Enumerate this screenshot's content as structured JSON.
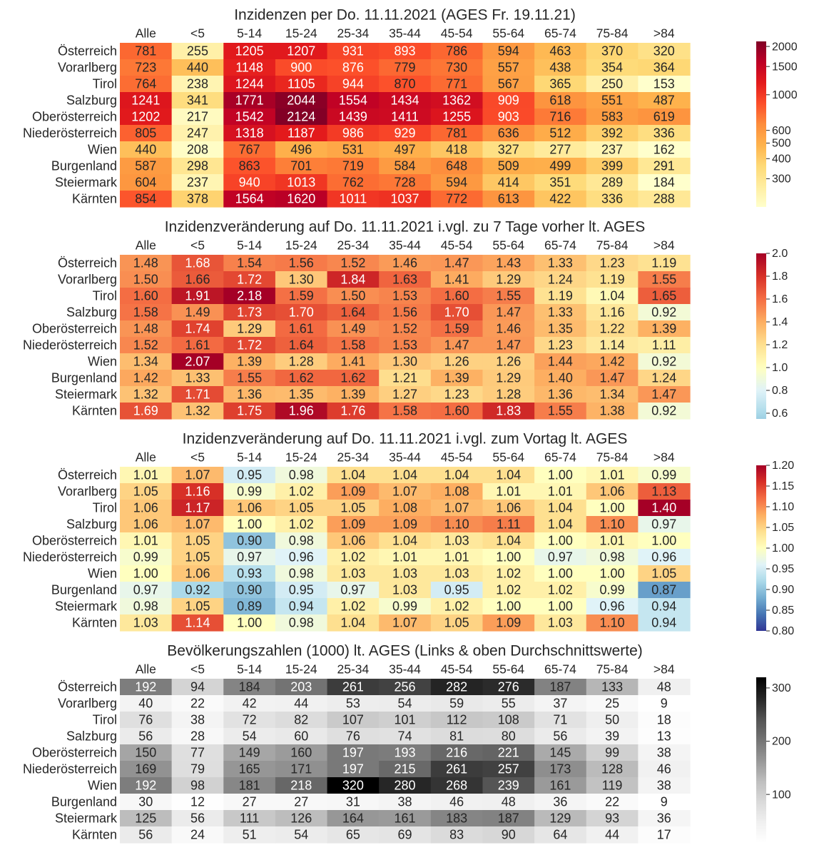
{
  "chart_data": [
    {
      "type": "heatmap",
      "title": "Inzidenzen per Do. 11.11.2021 (AGES Fr. 19.11.21)",
      "columns": [
        "Alle",
        "<5",
        "5-14",
        "15-24",
        "25-34",
        "35-44",
        "45-54",
        "55-64",
        "65-74",
        "75-84",
        ">84"
      ],
      "rows": [
        "Österreich",
        "Vorarlberg",
        "Tirol",
        "Salzburg",
        "Oberösterreich",
        "Niederösterreich",
        "Wien",
        "Burgenland",
        "Steiermark",
        "Kärnten"
      ],
      "values": [
        [
          "781",
          "255",
          "1205",
          "1207",
          "931",
          "893",
          "786",
          "594",
          "463",
          "370",
          "320"
        ],
        [
          "723",
          "440",
          "1148",
          "900",
          "876",
          "779",
          "730",
          "557",
          "438",
          "354",
          "364"
        ],
        [
          "764",
          "238",
          "1244",
          "1105",
          "944",
          "870",
          "771",
          "567",
          "365",
          "250",
          "153"
        ],
        [
          "1241",
          "341",
          "1771",
          "2044",
          "1554",
          "1434",
          "1362",
          "909",
          "618",
          "551",
          "487"
        ],
        [
          "1202",
          "217",
          "1542",
          "2124",
          "1439",
          "1411",
          "1255",
          "903",
          "716",
          "583",
          "619"
        ],
        [
          "805",
          "247",
          "1318",
          "1187",
          "986",
          "929",
          "781",
          "636",
          "512",
          "392",
          "336"
        ],
        [
          "440",
          "208",
          "767",
          "496",
          "531",
          "497",
          "418",
          "327",
          "277",
          "237",
          "162"
        ],
        [
          "587",
          "298",
          "863",
          "701",
          "719",
          "584",
          "648",
          "509",
          "499",
          "399",
          "291"
        ],
        [
          "604",
          "237",
          "940",
          "1013",
          "762",
          "728",
          "594",
          "414",
          "351",
          "289",
          "184"
        ],
        [
          "854",
          "378",
          "1564",
          "1620",
          "1011",
          "1037",
          "772",
          "613",
          "422",
          "336",
          "288"
        ]
      ],
      "colormap": "YlOrRd",
      "scale": "log",
      "vmin": 200,
      "vmax": 2150,
      "colorbar_ticks": [
        "300",
        "400",
        "500",
        "600",
        "1000",
        "1500",
        "2000"
      ]
    },
    {
      "type": "heatmap",
      "title": "Inzidenzveränderung auf Do. 11.11.2021 i.vgl. zu 7 Tage vorher lt. AGES",
      "columns": [
        "Alle",
        "<5",
        "5-14",
        "15-24",
        "25-34",
        "35-44",
        "45-54",
        "55-64",
        "65-74",
        "75-84",
        ">84"
      ],
      "rows": [
        "Österreich",
        "Vorarlberg",
        "Tirol",
        "Salzburg",
        "Oberösterreich",
        "Niederösterreich",
        "Wien",
        "Burgenland",
        "Steiermark",
        "Kärnten"
      ],
      "values": [
        [
          "1.48",
          "1.68",
          "1.54",
          "1.56",
          "1.52",
          "1.46",
          "1.47",
          "1.43",
          "1.33",
          "1.23",
          "1.19"
        ],
        [
          "1.50",
          "1.66",
          "1.72",
          "1.30",
          "1.84",
          "1.63",
          "1.41",
          "1.29",
          "1.24",
          "1.19",
          "1.55"
        ],
        [
          "1.60",
          "1.91",
          "2.18",
          "1.59",
          "1.50",
          "1.53",
          "1.60",
          "1.55",
          "1.19",
          "1.04",
          "1.65"
        ],
        [
          "1.58",
          "1.49",
          "1.73",
          "1.70",
          "1.64",
          "1.56",
          "1.70",
          "1.47",
          "1.33",
          "1.16",
          "0.92"
        ],
        [
          "1.48",
          "1.74",
          "1.29",
          "1.61",
          "1.49",
          "1.52",
          "1.59",
          "1.46",
          "1.35",
          "1.22",
          "1.39"
        ],
        [
          "1.52",
          "1.61",
          "1.72",
          "1.64",
          "1.58",
          "1.53",
          "1.47",
          "1.47",
          "1.23",
          "1.14",
          "1.11"
        ],
        [
          "1.34",
          "2.07",
          "1.39",
          "1.28",
          "1.41",
          "1.30",
          "1.26",
          "1.26",
          "1.44",
          "1.42",
          "0.92"
        ],
        [
          "1.42",
          "1.33",
          "1.55",
          "1.62",
          "1.62",
          "1.21",
          "1.39",
          "1.29",
          "1.40",
          "1.47",
          "1.24"
        ],
        [
          "1.32",
          "1.71",
          "1.36",
          "1.35",
          "1.39",
          "1.27",
          "1.23",
          "1.28",
          "1.36",
          "1.34",
          "1.47"
        ],
        [
          "1.69",
          "1.32",
          "1.75",
          "1.96",
          "1.76",
          "1.58",
          "1.60",
          "1.83",
          "1.55",
          "1.38",
          "0.92"
        ]
      ],
      "colormap": "RdYlBu_r",
      "scale": "linear",
      "vmin": 0.55,
      "vmax": 2.0,
      "center": 1.0,
      "colorbar_ticks": [
        "0.6",
        "0.8",
        "1.0",
        "1.2",
        "1.4",
        "1.6",
        "1.8",
        "2.0"
      ]
    },
    {
      "type": "heatmap",
      "title": "Inzidenzveränderung auf Do. 11.11.2021 i.vgl. zum Vortag lt. AGES",
      "columns": [
        "Alle",
        "<5",
        "5-14",
        "15-24",
        "25-34",
        "35-44",
        "45-54",
        "55-64",
        "65-74",
        "75-84",
        ">84"
      ],
      "rows": [
        "Österreich",
        "Vorarlberg",
        "Tirol",
        "Salzburg",
        "Oberösterreich",
        "Niederösterreich",
        "Wien",
        "Burgenland",
        "Steiermark",
        "Kärnten"
      ],
      "values": [
        [
          "1.01",
          "1.07",
          "0.95",
          "0.98",
          "1.04",
          "1.04",
          "1.04",
          "1.04",
          "1.00",
          "1.01",
          "0.99"
        ],
        [
          "1.05",
          "1.16",
          "0.99",
          "1.02",
          "1.09",
          "1.07",
          "1.08",
          "1.01",
          "1.01",
          "1.06",
          "1.13"
        ],
        [
          "1.06",
          "1.17",
          "1.06",
          "1.05",
          "1.05",
          "1.08",
          "1.07",
          "1.06",
          "1.04",
          "1.00",
          "1.40"
        ],
        [
          "1.06",
          "1.07",
          "1.00",
          "1.02",
          "1.09",
          "1.09",
          "1.10",
          "1.11",
          "1.04",
          "1.10",
          "0.97"
        ],
        [
          "1.01",
          "1.05",
          "0.90",
          "0.98",
          "1.06",
          "1.04",
          "1.03",
          "1.04",
          "1.00",
          "1.01",
          "1.00"
        ],
        [
          "0.99",
          "1.05",
          "0.97",
          "0.96",
          "1.02",
          "1.01",
          "1.01",
          "1.00",
          "0.97",
          "0.98",
          "0.96"
        ],
        [
          "1.00",
          "1.06",
          "0.93",
          "0.98",
          "1.03",
          "1.03",
          "1.03",
          "1.02",
          "1.00",
          "1.00",
          "1.05"
        ],
        [
          "0.97",
          "0.92",
          "0.90",
          "0.95",
          "0.97",
          "1.03",
          "0.95",
          "1.02",
          "1.02",
          "0.99",
          "0.87"
        ],
        [
          "0.98",
          "1.05",
          "0.89",
          "0.94",
          "1.02",
          "0.99",
          "1.02",
          "1.00",
          "1.00",
          "0.96",
          "0.94"
        ],
        [
          "1.03",
          "1.14",
          "1.00",
          "0.98",
          "1.04",
          "1.07",
          "1.05",
          "1.09",
          "1.03",
          "1.10",
          "0.94"
        ]
      ],
      "colormap": "RdYlBu_r",
      "scale": "linear",
      "vmin": 0.8,
      "vmax": 1.2,
      "center": 1.0,
      "colorbar_ticks": [
        "0.80",
        "0.85",
        "0.90",
        "0.95",
        "1.00",
        "1.05",
        "1.10",
        "1.15",
        "1.20"
      ]
    },
    {
      "type": "heatmap",
      "title": "Bevölkerungszahlen (1000) lt. AGES (Links & oben Durchschnittswerte)",
      "columns": [
        "Alle",
        "<5",
        "5-14",
        "15-24",
        "25-34",
        "35-44",
        "45-54",
        "55-64",
        "65-74",
        "75-84",
        ">84"
      ],
      "rows": [
        "Österreich",
        "Vorarlberg",
        "Tirol",
        "Salzburg",
        "Oberösterreich",
        "Niederösterreich",
        "Wien",
        "Burgenland",
        "Steiermark",
        "Kärnten"
      ],
      "values": [
        [
          "192",
          "94",
          "184",
          "203",
          "261",
          "256",
          "282",
          "276",
          "187",
          "133",
          "48"
        ],
        [
          "40",
          "22",
          "42",
          "44",
          "53",
          "54",
          "59",
          "55",
          "37",
          "25",
          "9"
        ],
        [
          "76",
          "38",
          "72",
          "82",
          "107",
          "101",
          "112",
          "108",
          "71",
          "50",
          "18"
        ],
        [
          "56",
          "28",
          "54",
          "60",
          "76",
          "74",
          "81",
          "80",
          "56",
          "39",
          "13"
        ],
        [
          "150",
          "77",
          "149",
          "160",
          "197",
          "193",
          "216",
          "221",
          "145",
          "99",
          "38"
        ],
        [
          "169",
          "79",
          "165",
          "171",
          "197",
          "215",
          "261",
          "257",
          "173",
          "128",
          "46"
        ],
        [
          "192",
          "98",
          "181",
          "218",
          "320",
          "280",
          "268",
          "239",
          "161",
          "119",
          "38"
        ],
        [
          "30",
          "12",
          "27",
          "27",
          "31",
          "38",
          "46",
          "48",
          "36",
          "22",
          "9"
        ],
        [
          "125",
          "56",
          "111",
          "126",
          "164",
          "161",
          "183",
          "187",
          "129",
          "93",
          "36"
        ],
        [
          "56",
          "24",
          "51",
          "54",
          "65",
          "69",
          "83",
          "90",
          "64",
          "44",
          "17"
        ]
      ],
      "colormap": "Greys",
      "scale": "linear",
      "vmin": 9,
      "vmax": 320,
      "colorbar_ticks": [
        "100",
        "200",
        "300"
      ]
    }
  ]
}
